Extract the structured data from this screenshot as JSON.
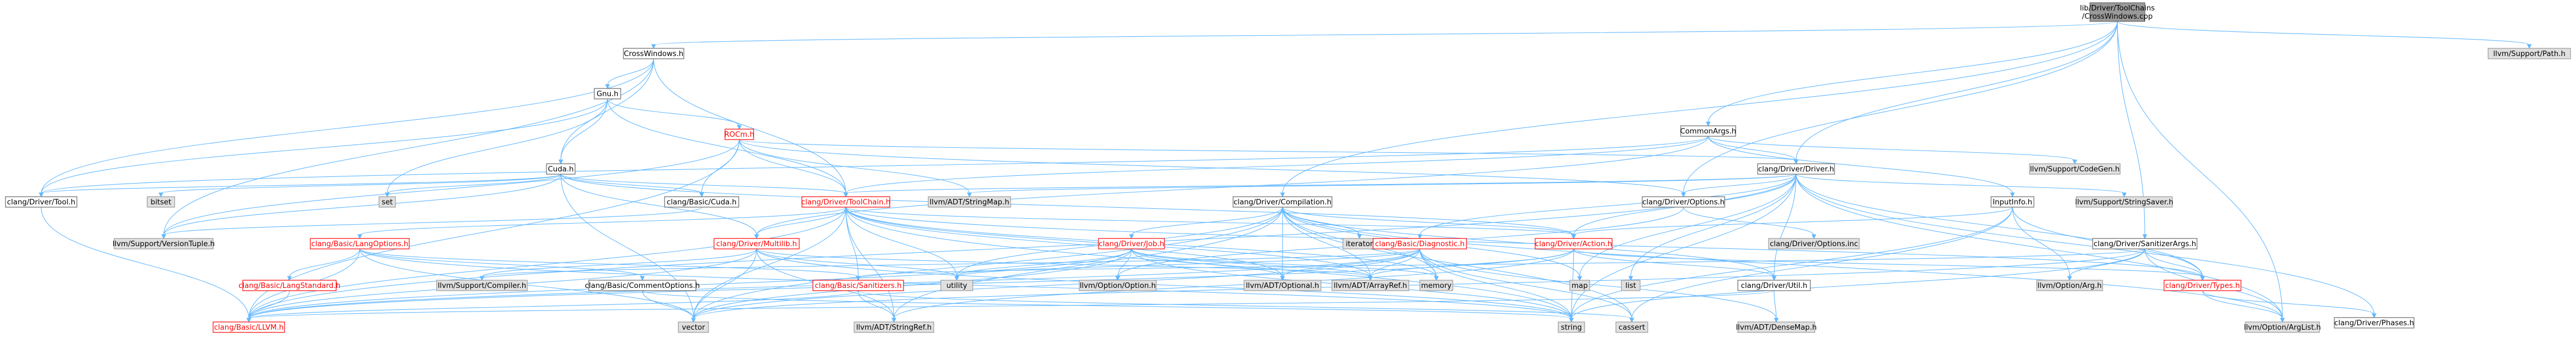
{
  "colors": {
    "edge": "#63b8ff",
    "node_border": "#666666",
    "node_fill": "#ffffff",
    "root_fill": "#999999",
    "ext_fill": "#e0e0e0",
    "ext_border": "#999999",
    "red_border": "#ff0000",
    "red_text": "#ff0000"
  },
  "nodes": [
    {
      "id": "root",
      "label": "lib/Driver/ToolChains\n/CrossWindows.cpp",
      "style": "root"
    },
    {
      "id": "cw_h",
      "label": "CrossWindows.h",
      "style": "normal"
    },
    {
      "id": "gnu_h",
      "label": "Gnu.h",
      "style": "normal"
    },
    {
      "id": "rocm_h",
      "label": "ROCm.h",
      "style": "red"
    },
    {
      "id": "cuda_h",
      "label": "Cuda.h",
      "style": "normal"
    },
    {
      "id": "tool_h",
      "label": "clang/Driver/Tool.h",
      "style": "normal"
    },
    {
      "id": "bitset",
      "label": "bitset",
      "style": "ext"
    },
    {
      "id": "set",
      "label": "set",
      "style": "ext"
    },
    {
      "id": "basic_cuda",
      "label": "clang/Basic/Cuda.h",
      "style": "normal"
    },
    {
      "id": "vtuple",
      "label": "llvm/Support/VersionTuple.h",
      "style": "ext"
    },
    {
      "id": "toolchain",
      "label": "clang/Driver/ToolChain.h",
      "style": "red"
    },
    {
      "id": "stringmap",
      "label": "llvm/ADT/StringMap.h",
      "style": "ext"
    },
    {
      "id": "commonargs",
      "label": "CommonArgs.h",
      "style": "normal"
    },
    {
      "id": "driver",
      "label": "clang/Driver/Driver.h",
      "style": "normal"
    },
    {
      "id": "codegen",
      "label": "llvm/Support/CodeGen.h",
      "style": "ext"
    },
    {
      "id": "compilation",
      "label": "clang/Driver/Compilation.h",
      "style": "normal"
    },
    {
      "id": "options_h",
      "label": "clang/Driver/Options.h",
      "style": "normal"
    },
    {
      "id": "inputinfo",
      "label": "InputInfo.h",
      "style": "normal"
    },
    {
      "id": "strsaver",
      "label": "llvm/Support/StringSaver.h",
      "style": "ext"
    },
    {
      "id": "langopts",
      "label": "clang/Basic/LangOptions.h",
      "style": "red"
    },
    {
      "id": "multilib",
      "label": "clang/Driver/Multilib.h",
      "style": "red"
    },
    {
      "id": "iterator",
      "label": "iterator",
      "style": "ext"
    },
    {
      "id": "job",
      "label": "clang/Driver/Job.h",
      "style": "red"
    },
    {
      "id": "diagnostic",
      "label": "clang/Basic/Diagnostic.h",
      "style": "red"
    },
    {
      "id": "action",
      "label": "clang/Driver/Action.h",
      "style": "red"
    },
    {
      "id": "options_inc",
      "label": "clang/Driver/Options.inc",
      "style": "ext"
    },
    {
      "id": "sanargs",
      "label": "clang/Driver/SanitizerArgs.h",
      "style": "normal"
    },
    {
      "id": "langstd",
      "label": "clang/Basic/LangStandard.h",
      "style": "red"
    },
    {
      "id": "compiler_h",
      "label": "llvm/Support/Compiler.h",
      "style": "ext"
    },
    {
      "id": "commentopts",
      "label": "clang/Basic/CommentOptions.h",
      "style": "normal"
    },
    {
      "id": "sanitizers",
      "label": "clang/Basic/Sanitizers.h",
      "style": "red"
    },
    {
      "id": "utility",
      "label": "utility",
      "style": "ext"
    },
    {
      "id": "llvm_option",
      "label": "llvm/Option/Option.h",
      "style": "ext"
    },
    {
      "id": "optional",
      "label": "llvm/ADT/Optional.h",
      "style": "ext"
    },
    {
      "id": "arrayref",
      "label": "llvm/ADT/ArrayRef.h",
      "style": "ext"
    },
    {
      "id": "memory",
      "label": "memory",
      "style": "ext"
    },
    {
      "id": "map",
      "label": "map",
      "style": "ext"
    },
    {
      "id": "list",
      "label": "list",
      "style": "ext"
    },
    {
      "id": "util_h",
      "label": "clang/Driver/Util.h",
      "style": "normal"
    },
    {
      "id": "opt_arg",
      "label": "llvm/Option/Arg.h",
      "style": "ext"
    },
    {
      "id": "types_h",
      "label": "clang/Driver/Types.h",
      "style": "red"
    },
    {
      "id": "phases",
      "label": "clang/Driver/Phases.h",
      "style": "normal"
    },
    {
      "id": "llvm_h",
      "label": "clang/Basic/LLVM.h",
      "style": "red"
    },
    {
      "id": "vector",
      "label": "vector",
      "style": "ext"
    },
    {
      "id": "stringref",
      "label": "llvm/ADT/StringRef.h",
      "style": "ext"
    },
    {
      "id": "string",
      "label": "string",
      "style": "ext"
    },
    {
      "id": "cassert",
      "label": "cassert",
      "style": "ext"
    },
    {
      "id": "densemap",
      "label": "llvm/ADT/DenseMap.h",
      "style": "ext"
    },
    {
      "id": "arglist",
      "label": "llvm/Option/ArgList.h",
      "style": "ext"
    },
    {
      "id": "path_h",
      "label": "llvm/Support/Path.h",
      "style": "ext"
    }
  ],
  "edges": [
    [
      "root",
      "cw_h"
    ],
    [
      "root",
      "commonargs"
    ],
    [
      "root",
      "driver"
    ],
    [
      "root",
      "compilation"
    ],
    [
      "root",
      "options_h"
    ],
    [
      "root",
      "sanargs"
    ],
    [
      "root",
      "arglist"
    ],
    [
      "root",
      "path_h"
    ],
    [
      "cw_h",
      "gnu_h"
    ],
    [
      "cw_h",
      "cuda_h"
    ],
    [
      "cw_h",
      "tool_h"
    ],
    [
      "cw_h",
      "toolchain"
    ],
    [
      "cw_h",
      "vtuple"
    ],
    [
      "gnu_h",
      "rocm_h"
    ],
    [
      "gnu_h",
      "cuda_h"
    ],
    [
      "gnu_h",
      "set"
    ],
    [
      "gnu_h",
      "toolchain"
    ],
    [
      "gnu_h",
      "tool_h"
    ],
    [
      "rocm_h",
      "basic_cuda"
    ],
    [
      "rocm_h",
      "llvm_h"
    ],
    [
      "rocm_h",
      "driver"
    ],
    [
      "rocm_h",
      "options_h"
    ],
    [
      "rocm_h",
      "stringmap"
    ],
    [
      "rocm_h",
      "vtuple"
    ],
    [
      "rocm_h",
      "toolchain"
    ],
    [
      "cuda_h",
      "basic_cuda"
    ],
    [
      "cuda_h",
      "action"
    ],
    [
      "cuda_h",
      "multilib"
    ],
    [
      "cuda_h",
      "tool_h"
    ],
    [
      "cuda_h",
      "toolchain"
    ],
    [
      "cuda_h",
      "bitset"
    ],
    [
      "cuda_h",
      "set"
    ],
    [
      "cuda_h",
      "vector"
    ],
    [
      "cuda_h",
      "vtuple"
    ],
    [
      "tool_h",
      "llvm_h"
    ],
    [
      "basic_cuda",
      "vtuple"
    ],
    [
      "commonargs",
      "inputinfo"
    ],
    [
      "commonargs",
      "driver"
    ],
    [
      "commonargs",
      "multilib"
    ],
    [
      "commonargs",
      "tool_h"
    ],
    [
      "commonargs",
      "toolchain"
    ],
    [
      "commonargs",
      "codegen"
    ],
    [
      "driver",
      "diagnostic"
    ],
    [
      "driver",
      "llvm_h"
    ],
    [
      "driver",
      "action"
    ],
    [
      "driver",
      "options_h"
    ],
    [
      "driver",
      "phases"
    ],
    [
      "driver",
      "toolchain"
    ],
    [
      "driver",
      "types_h"
    ],
    [
      "driver",
      "util_h"
    ],
    [
      "driver",
      "stringmap"
    ],
    [
      "driver",
      "strsaver"
    ],
    [
      "driver",
      "list"
    ],
    [
      "driver",
      "map"
    ],
    [
      "driver",
      "string"
    ],
    [
      "driver",
      "arglist"
    ],
    [
      "compilation",
      "action"
    ],
    [
      "compilation",
      "job"
    ],
    [
      "compilation",
      "util_h"
    ],
    [
      "compilation",
      "arrayref"
    ],
    [
      "compilation",
      "optional"
    ],
    [
      "compilation",
      "stringref"
    ],
    [
      "compilation",
      "arglist"
    ],
    [
      "compilation",
      "cassert"
    ],
    [
      "compilation",
      "iterator"
    ],
    [
      "compilation",
      "map"
    ],
    [
      "compilation",
      "memory"
    ],
    [
      "compilation",
      "utility"
    ],
    [
      "compilation",
      "vector"
    ],
    [
      "options_h",
      "options_inc"
    ],
    [
      "options_h",
      "llvm_option"
    ],
    [
      "inputinfo",
      "action"
    ],
    [
      "inputinfo",
      "types_h"
    ],
    [
      "inputinfo",
      "opt_arg"
    ],
    [
      "inputinfo",
      "cassert"
    ],
    [
      "inputinfo",
      "string"
    ],
    [
      "toolchain",
      "langopts"
    ],
    [
      "toolchain",
      "llvm_h"
    ],
    [
      "toolchain",
      "sanitizers"
    ],
    [
      "toolchain",
      "action"
    ],
    [
      "toolchain",
      "multilib"
    ],
    [
      "toolchain",
      "types_h"
    ],
    [
      "toolchain",
      "arrayref"
    ],
    [
      "toolchain",
      "optional"
    ],
    [
      "toolchain",
      "stringref"
    ],
    [
      "toolchain",
      "memory"
    ],
    [
      "toolchain",
      "string"
    ],
    [
      "toolchain",
      "utility"
    ],
    [
      "toolchain",
      "vector"
    ],
    [
      "langopts",
      "langstd"
    ],
    [
      "langopts",
      "commentopts"
    ],
    [
      "langopts",
      "llvm_h"
    ],
    [
      "langopts",
      "sanitizers"
    ],
    [
      "langopts",
      "string"
    ],
    [
      "langopts",
      "vector"
    ],
    [
      "langstd",
      "llvm_h"
    ],
    [
      "commentopts",
      "string"
    ],
    [
      "commentopts",
      "vector"
    ],
    [
      "sanitizers",
      "llvm_h"
    ],
    [
      "sanitizers",
      "stringref"
    ],
    [
      "sanitizers",
      "cassert"
    ],
    [
      "multilib",
      "llvm_h"
    ],
    [
      "multilib",
      "arrayref"
    ],
    [
      "multilib",
      "stringref"
    ],
    [
      "multilib",
      "compiler_h"
    ],
    [
      "multilib",
      "functional"
    ],
    [
      "multilib",
      "string"
    ],
    [
      "multilib",
      "utility"
    ],
    [
      "multilib",
      "vector"
    ],
    [
      "job",
      "llvm_h"
    ],
    [
      "job",
      "arrayref"
    ],
    [
      "job",
      "optional"
    ],
    [
      "job",
      "llvm_option"
    ],
    [
      "job",
      "memory"
    ],
    [
      "job",
      "string"
    ],
    [
      "job",
      "utility"
    ],
    [
      "job",
      "vector"
    ],
    [
      "diagnostic",
      "llvm_h"
    ],
    [
      "diagnostic",
      "arrayref"
    ],
    [
      "diagnostic",
      "densemap"
    ],
    [
      "diagnostic",
      "optional"
    ],
    [
      "diagnostic",
      "compiler_h"
    ],
    [
      "diagnostic",
      "cassert"
    ],
    [
      "diagnostic",
      "memory"
    ],
    [
      "diagnostic",
      "string"
    ],
    [
      "diagnostic",
      "utility"
    ],
    [
      "diagnostic",
      "vector"
    ],
    [
      "action",
      "llvm_h"
    ],
    [
      "action",
      "types_h"
    ],
    [
      "action",
      "util_h"
    ],
    [
      "action",
      "arrayref"
    ],
    [
      "action",
      "stringref"
    ],
    [
      "action",
      "string"
    ],
    [
      "util_h",
      "llvm_h"
    ],
    [
      "util_h",
      "densemap"
    ],
    [
      "sanargs",
      "sanitizers"
    ],
    [
      "sanargs",
      "types_h"
    ],
    [
      "sanargs",
      "opt_arg"
    ],
    [
      "sanargs",
      "arglist"
    ],
    [
      "sanargs",
      "string"
    ],
    [
      "sanargs",
      "vector"
    ],
    [
      "types_h",
      "phases"
    ],
    [
      "types_h",
      "arglist"
    ]
  ]
}
